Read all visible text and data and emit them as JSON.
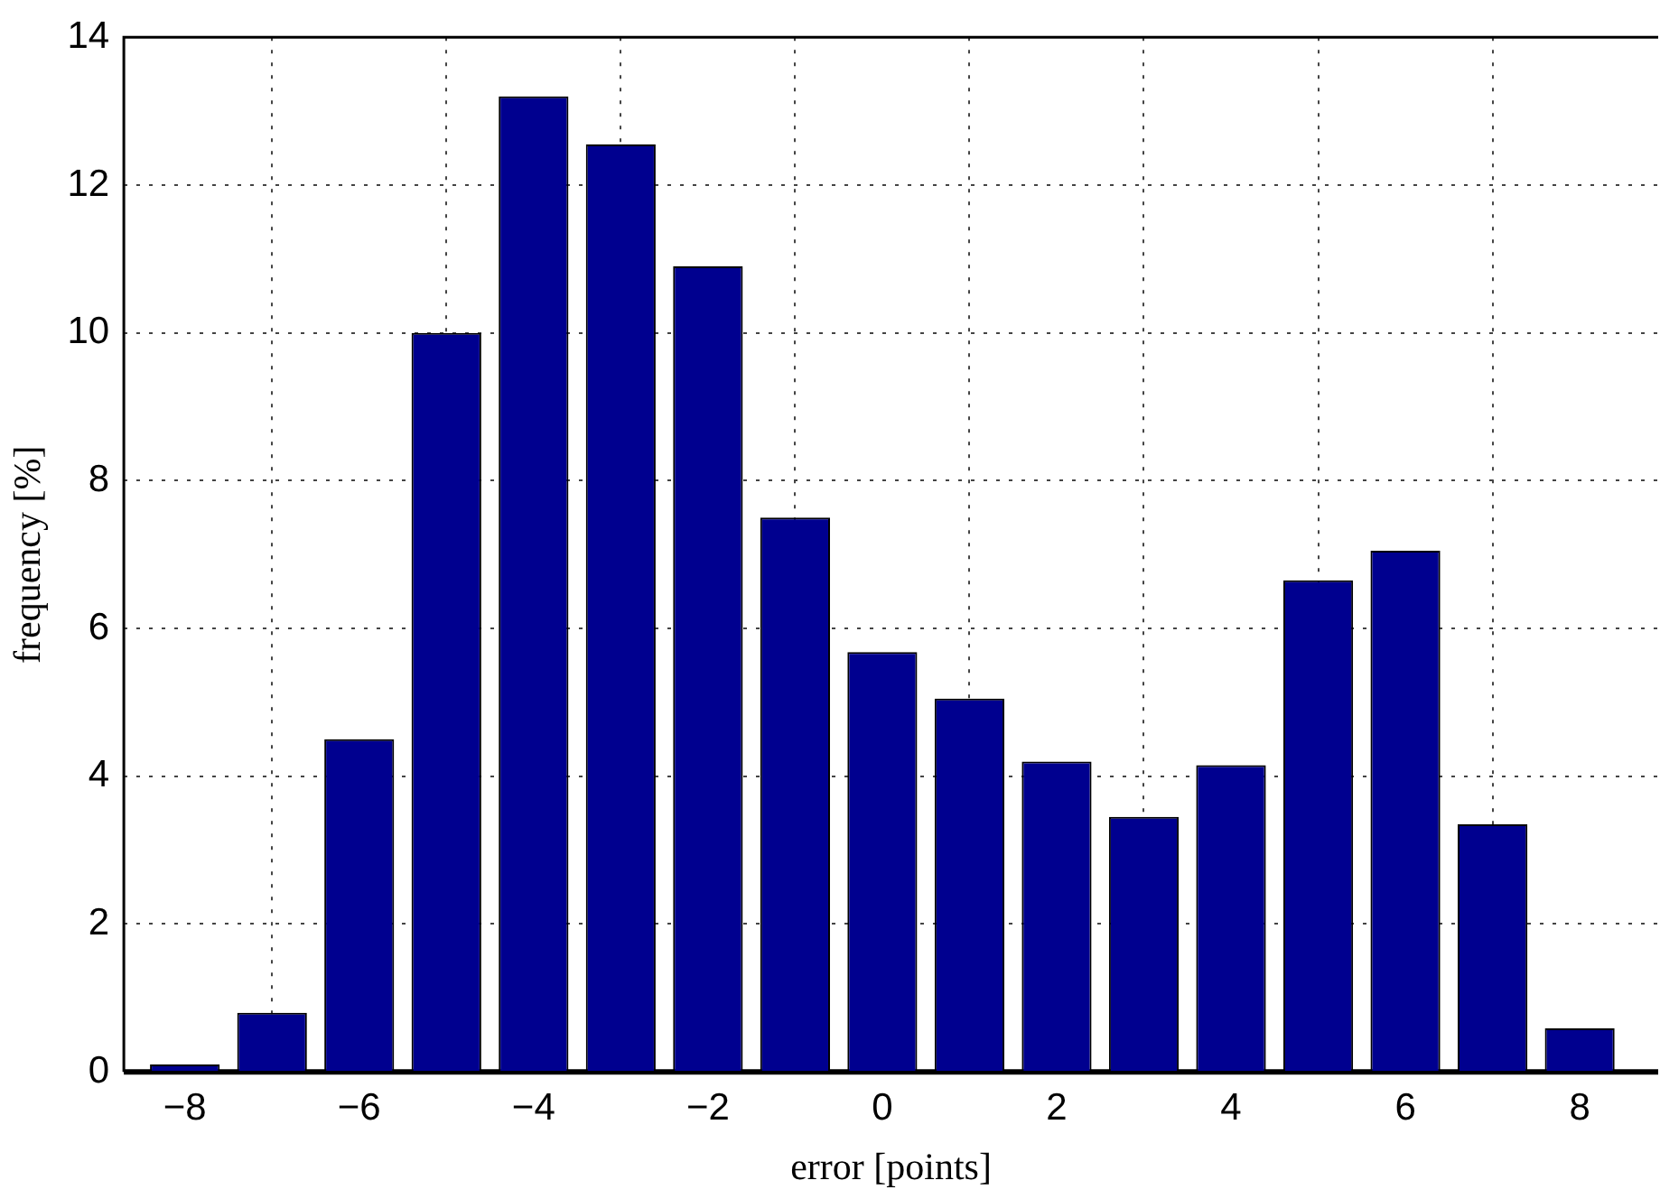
{
  "chart_data": {
    "type": "bar",
    "xlabel": "error [points]",
    "ylabel": "frequency [%]",
    "x": [
      -8,
      -7,
      -6,
      -5,
      -4,
      -3,
      -2,
      -1,
      0,
      1,
      2,
      3,
      4,
      5,
      6,
      7,
      8
    ],
    "values": [
      0.1,
      0.8,
      4.5,
      10.0,
      13.2,
      12.55,
      10.9,
      7.5,
      5.68,
      5.05,
      4.2,
      3.45,
      4.15,
      6.65,
      7.05,
      3.35,
      0.59
    ],
    "color": "#00008f",
    "xlim": [
      -8.7,
      8.9
    ],
    "xticks": [
      -8,
      -6,
      -4,
      -2,
      0,
      2,
      4,
      6,
      8
    ],
    "ylim": [
      0,
      14
    ],
    "yticks": [
      0,
      2,
      4,
      6,
      8,
      10,
      12,
      14
    ],
    "grid": true,
    "legend": false
  }
}
